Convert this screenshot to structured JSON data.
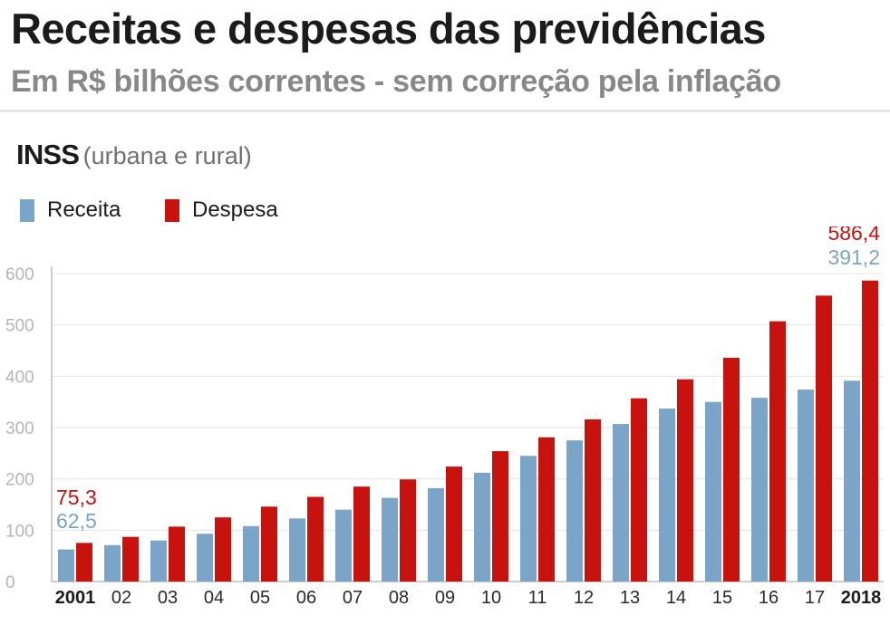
{
  "header": {
    "title": "Receitas e despesas das previdências",
    "subtitle": "Em R$ bilhões correntes - sem correção pela inflação"
  },
  "section": {
    "name": "INSS",
    "qualifier": "(urbana e rural)"
  },
  "colors": {
    "receita": "#7aa5c8",
    "despesa": "#c8120e"
  },
  "chart_data": {
    "type": "bar",
    "title": "INSS (urbana e rural)",
    "xlabel": "",
    "ylabel": "",
    "ylim": [
      0,
      600
    ],
    "yticks": [
      0,
      100,
      200,
      300,
      400,
      500,
      600
    ],
    "grid": true,
    "legend": "top-left",
    "categories": [
      "2001",
      "02",
      "03",
      "04",
      "05",
      "06",
      "07",
      "08",
      "09",
      "10",
      "11",
      "12",
      "13",
      "14",
      "15",
      "16",
      "17",
      "2018"
    ],
    "bold_categories": [
      "2001",
      "2018"
    ],
    "series": [
      {
        "name": "Receita",
        "key": "receita",
        "values": [
          62.5,
          71,
          80,
          93,
          108,
          123,
          140,
          163,
          182,
          212,
          245,
          275,
          307,
          337,
          350,
          358,
          374,
          391.2
        ],
        "labels": {
          "0": "62,5",
          "17": "391,2"
        }
      },
      {
        "name": "Despesa",
        "key": "despesa",
        "values": [
          75.3,
          87,
          107,
          125,
          146,
          165,
          185,
          199,
          224,
          254,
          281,
          316,
          357,
          394,
          436,
          507,
          557,
          586.4
        ],
        "labels": {
          "0": "75,3",
          "17": "586,4"
        }
      }
    ]
  }
}
